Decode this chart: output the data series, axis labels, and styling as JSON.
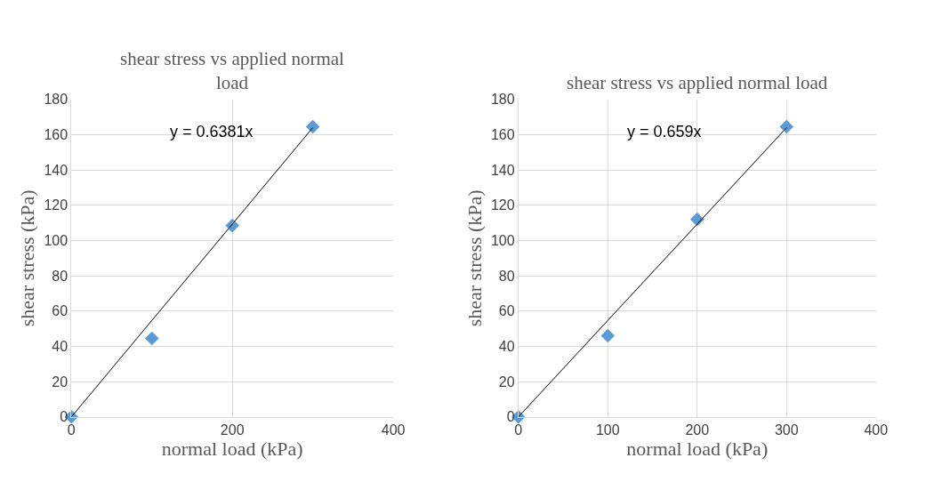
{
  "chart_data": [
    {
      "type": "scatter",
      "title": "shear stress vs applied normal load",
      "xlabel": "normal load (kPa)",
      "ylabel": "shear stress (kPa)",
      "x": [
        0,
        100,
        200,
        300
      ],
      "xlim": [
        0,
        400
      ],
      "xticks": [
        0,
        200,
        400
      ],
      "ylim": [
        0,
        180
      ],
      "yticks": [
        0,
        20,
        40,
        60,
        80,
        100,
        120,
        140,
        160,
        180
      ],
      "grid": true,
      "marker": "diamond",
      "annotations": [
        "y = 0.6381x"
      ],
      "series": [
        {
          "color": "#5b9bd5",
          "values": [
            0,
            44.5,
            108.5,
            164.5
          ]
        },
        {
          "type": "line",
          "color": "#000000",
          "values": [
            0,
            54.7,
            109.3,
            164
          ],
          "marker": "none"
        }
      ]
    },
    {
      "type": "scatter",
      "title": "shear stress vs applied normal load",
      "xlabel": "normal load (kPa)",
      "ylabel": "shear stress (kPa)",
      "x": [
        0,
        100,
        200,
        300
      ],
      "xlim": [
        0,
        400
      ],
      "xticks": [
        0,
        100,
        200,
        300,
        400
      ],
      "ylim": [
        0,
        180
      ],
      "yticks": [
        0,
        20,
        40,
        60,
        80,
        100,
        120,
        140,
        160,
        180
      ],
      "grid": true,
      "marker": "diamond",
      "annotations": [
        "y = 0.659x"
      ],
      "series": [
        {
          "color": "#5b9bd5",
          "values": [
            0,
            46,
            112,
            164.5
          ]
        },
        {
          "type": "line",
          "color": "#000000",
          "values": [
            0,
            54.7,
            109.3,
            164
          ],
          "marker": "none"
        }
      ]
    }
  ]
}
